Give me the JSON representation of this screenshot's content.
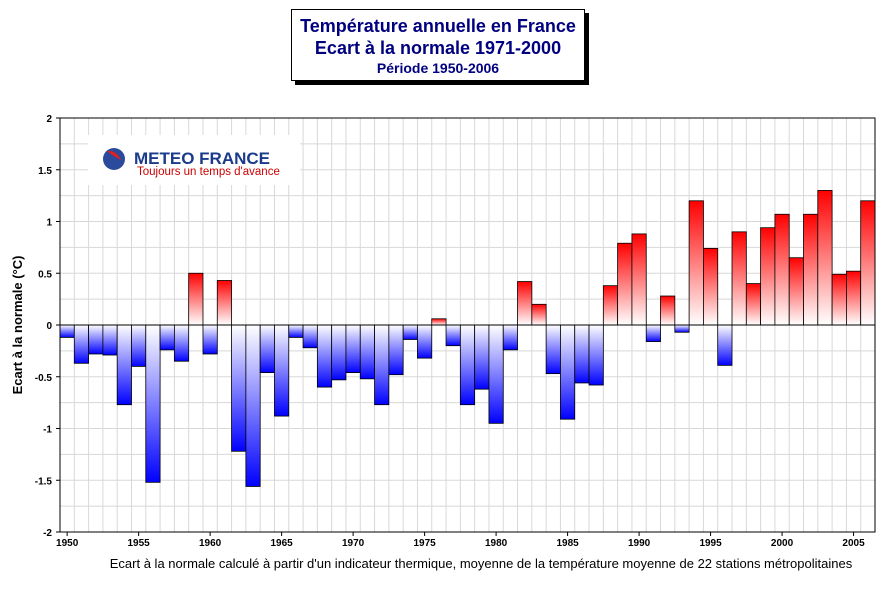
{
  "chart_data": {
    "type": "bar",
    "title": [
      "Température annuelle en France",
      "Ecart à la normale 1971-2000",
      "Période 1950-2006"
    ],
    "ylabel": "Ecart à la normale (°C)",
    "xlabel": "Ecart à la normale calculé à partir d'un indicateur thermique, moyenne de la température moyenne de 22 stations métropolitaines",
    "ylim": [
      -2,
      2
    ],
    "yticks": [
      2,
      1.5,
      1,
      0.5,
      0,
      -0.5,
      -1,
      -1.5,
      -2
    ],
    "ytick_labels": [
      "2",
      "1.5",
      "1",
      "0.5",
      "0",
      "-0.5",
      "-1",
      "-1.5",
      "-2"
    ],
    "xticks": [
      1950,
      1955,
      1960,
      1965,
      1970,
      1975,
      1980,
      1985,
      1990,
      1995,
      2000,
      2005
    ],
    "x": [
      1950,
      1951,
      1952,
      1953,
      1954,
      1955,
      1956,
      1957,
      1958,
      1959,
      1960,
      1961,
      1962,
      1963,
      1964,
      1965,
      1966,
      1967,
      1968,
      1969,
      1970,
      1971,
      1972,
      1973,
      1974,
      1975,
      1976,
      1977,
      1978,
      1979,
      1980,
      1981,
      1982,
      1983,
      1984,
      1985,
      1986,
      1987,
      1988,
      1989,
      1990,
      1991,
      1992,
      1993,
      1994,
      1995,
      1996,
      1997,
      1998,
      1999,
      2000,
      2001,
      2002,
      2003,
      2004,
      2005,
      2006
    ],
    "values": [
      -0.12,
      -0.37,
      -0.28,
      -0.29,
      -0.77,
      -0.4,
      -1.52,
      -0.24,
      -0.35,
      0.5,
      -0.28,
      0.43,
      -1.22,
      -1.56,
      -0.46,
      -0.88,
      -0.12,
      -0.22,
      -0.6,
      -0.53,
      -0.46,
      -0.52,
      -0.77,
      -0.48,
      -0.14,
      -0.32,
      0.06,
      -0.2,
      -0.77,
      -0.62,
      -0.95,
      -0.24,
      0.42,
      0.2,
      -0.47,
      -0.91,
      -0.56,
      -0.58,
      0.38,
      0.79,
      0.88,
      -0.16,
      0.28,
      -0.07,
      1.2,
      0.74,
      -0.39,
      0.9,
      0.4,
      0.94,
      1.07,
      0.65,
      1.07,
      1.3,
      0.49,
      0.52,
      1.2
    ],
    "colors": {
      "positive": "#ff0000",
      "negative": "#0000ff",
      "title": "#000080",
      "logo_text": "#1a3a8c",
      "logo_tagline": "#cc0000"
    }
  },
  "logo": {
    "name": "METEO FRANCE",
    "tagline": "Toujours un temps d'avance"
  }
}
